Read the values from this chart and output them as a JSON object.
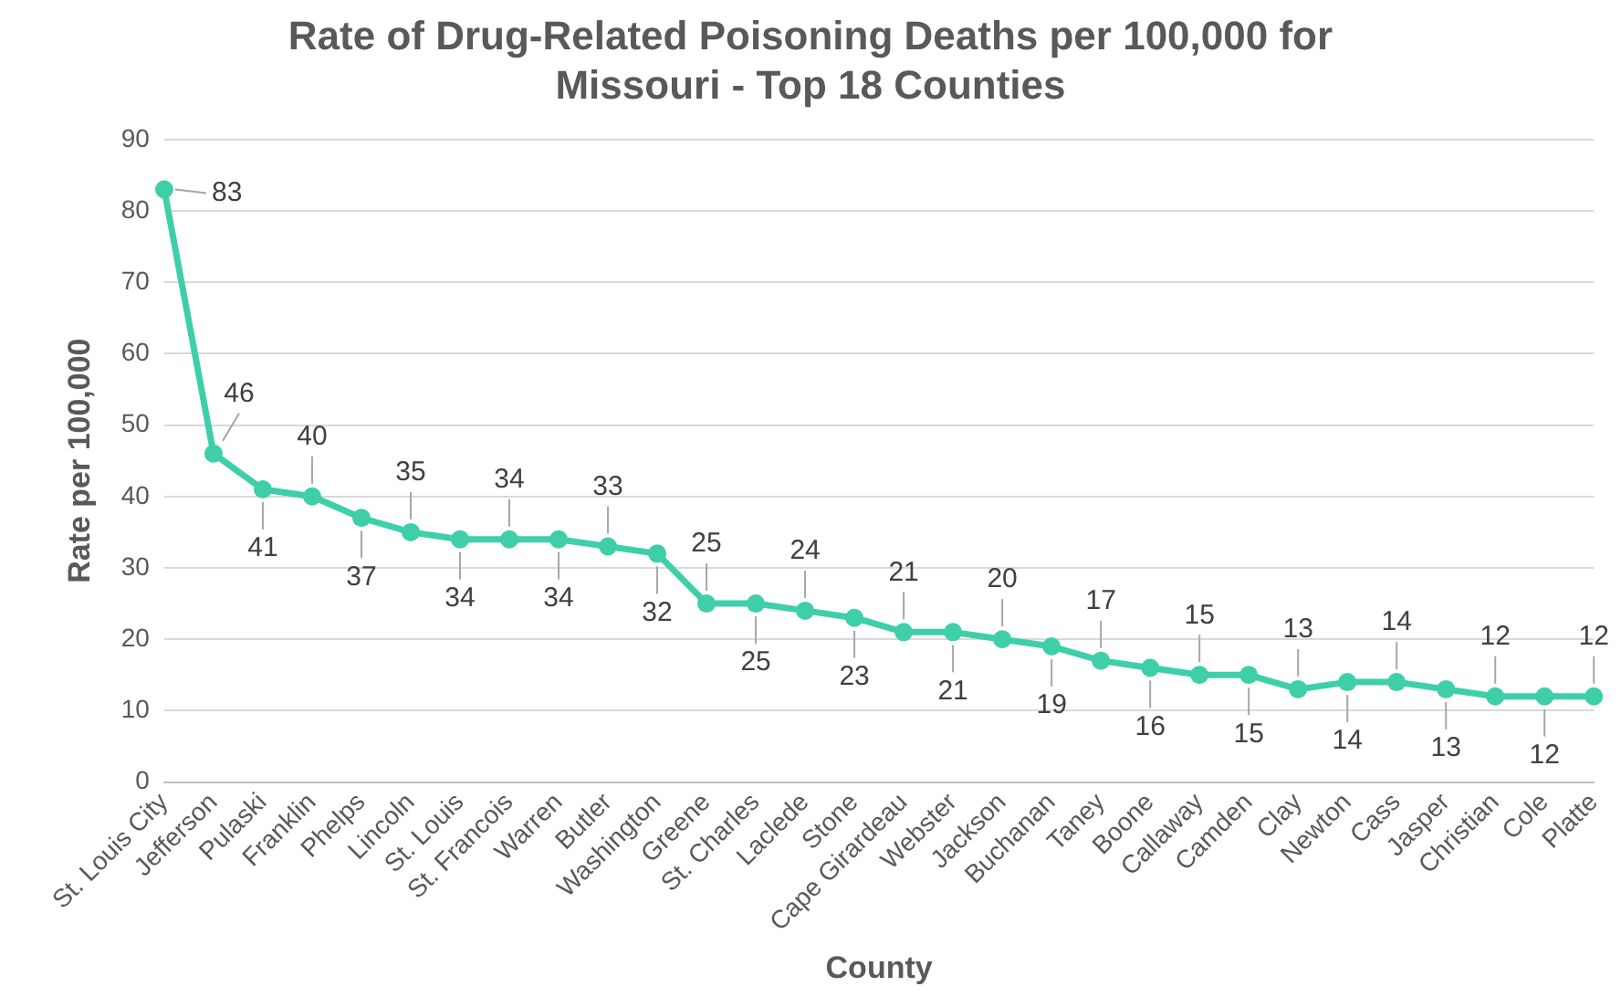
{
  "chart_data": {
    "type": "line",
    "title": "Rate of Drug-Related Poisoning Deaths per 100,000 for Missouri - Top 18 Counties",
    "xlabel": "County",
    "ylabel": "Rate per 100,000",
    "categories": [
      "St. Louis City",
      "Jefferson",
      "Pulaski",
      "Franklin",
      "Phelps",
      "Lincoln",
      "St. Louis",
      "St. Francois",
      "Warren",
      "Butler",
      "Washington",
      "Greene",
      "St. Charles",
      "Laclede",
      "Stone",
      "Cape Girardeau",
      "Webster",
      "Jackson",
      "Buchanan",
      "Taney",
      "Boone",
      "Callaway",
      "Camden",
      "Clay",
      "Newton",
      "Cass",
      "Jasper",
      "Christian",
      "Cole",
      "Platte"
    ],
    "series": [
      {
        "color": "#3ecfa9",
        "values": [
          83,
          46,
          41,
          40,
          37,
          35,
          34,
          34,
          34,
          33,
          32,
          25,
          25,
          24,
          23,
          21,
          21,
          20,
          19,
          17,
          16,
          15,
          15,
          13,
          14,
          14,
          13,
          12,
          12,
          12
        ]
      }
    ],
    "ylim": [
      0,
      90
    ],
    "yticks": [
      0,
      10,
      20,
      30,
      40,
      50,
      60,
      70,
      80,
      90
    ],
    "grid": "y",
    "legend": false,
    "marker": "circle",
    "line_style": "solid",
    "data_labels": true
  }
}
